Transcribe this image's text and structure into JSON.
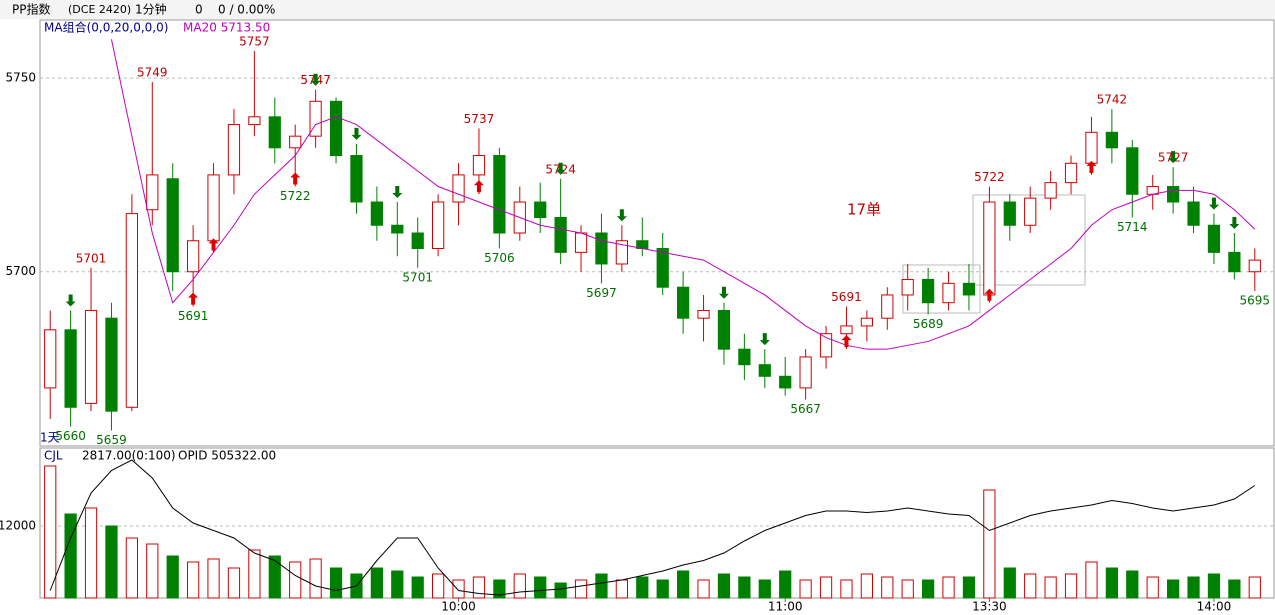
{
  "chart_data": {
    "type": "candlestick",
    "header": {
      "symbol": "PP指数",
      "code": "(DCE 2420)",
      "period": "1分钟",
      "change": "0",
      "change_pct": "0 / 0.00%"
    },
    "ma_legend": "MA组合(0,0,20,0,0,0)",
    "ma_label": "MA20 5713.50",
    "range_label": "1天",
    "annotation": "17单",
    "volume_legend": "CJL",
    "volume_label": "2817.00(0:100)",
    "opid_label": "OPID 505322.00",
    "categories": [
      null,
      null,
      null,
      null,
      null,
      null,
      null,
      null,
      null,
      null,
      null,
      null,
      null,
      null,
      null,
      null,
      null,
      null,
      null,
      null,
      "10:00",
      null,
      null,
      null,
      null,
      null,
      null,
      null,
      null,
      null,
      null,
      null,
      null,
      null,
      null,
      null,
      "11:00",
      null,
      null,
      null,
      null,
      null,
      null,
      null,
      null,
      null,
      "13:30",
      null,
      null,
      null,
      null,
      null,
      null,
      null,
      null,
      null,
      null,
      "14:00",
      null,
      null
    ],
    "candles": [
      [
        5670,
        5690,
        5662,
        5685
      ],
      [
        5685,
        5690,
        5660,
        5665
      ],
      [
        5666,
        5701,
        5664,
        5690
      ],
      [
        5688,
        5692,
        5659,
        5664
      ],
      [
        5665,
        5720,
        5664,
        5715
      ],
      [
        5716,
        5749,
        5712,
        5725
      ],
      [
        5724,
        5728,
        5695,
        5700
      ],
      [
        5700,
        5712,
        5691,
        5708
      ],
      [
        5708,
        5728,
        5705,
        5725
      ],
      [
        5725,
        5742,
        5720,
        5738
      ],
      [
        5738,
        5757,
        5735,
        5740
      ],
      [
        5740,
        5745,
        5728,
        5732
      ],
      [
        5732,
        5738,
        5722,
        5735
      ],
      [
        5735,
        5747,
        5732,
        5744
      ],
      [
        5744,
        5745,
        5728,
        5730
      ],
      [
        5730,
        5733,
        5715,
        5718
      ],
      [
        5718,
        5722,
        5708,
        5712
      ],
      [
        5712,
        5718,
        5704,
        5710
      ],
      [
        5710,
        5714,
        5701,
        5706
      ],
      [
        5706,
        5720,
        5704,
        5718
      ],
      [
        5718,
        5728,
        5712,
        5725
      ],
      [
        5725,
        5737,
        5720,
        5730
      ],
      [
        5730,
        5732,
        5706,
        5710
      ],
      [
        5710,
        5722,
        5708,
        5718
      ],
      [
        5718,
        5723,
        5710,
        5714
      ],
      [
        5714,
        5724,
        5702,
        5705
      ],
      [
        5705,
        5712,
        5700,
        5710
      ],
      [
        5710,
        5715,
        5697,
        5702
      ],
      [
        5702,
        5712,
        5700,
        5708
      ],
      [
        5708,
        5714,
        5704,
        5706
      ],
      [
        5706,
        5710,
        5694,
        5696
      ],
      [
        5696,
        5700,
        5684,
        5688
      ],
      [
        5688,
        5694,
        5682,
        5690
      ],
      [
        5690,
        5692,
        5676,
        5680
      ],
      [
        5680,
        5684,
        5672,
        5676
      ],
      [
        5676,
        5680,
        5670,
        5673
      ],
      [
        5673,
        5678,
        5668,
        5670
      ],
      [
        5670,
        5680,
        5667,
        5678
      ],
      [
        5678,
        5686,
        5675,
        5684
      ],
      [
        5684,
        5691,
        5680,
        5686
      ],
      [
        5686,
        5690,
        5682,
        5688
      ],
      [
        5688,
        5696,
        5685,
        5694
      ],
      [
        5694,
        5702,
        5690,
        5698
      ],
      [
        5698,
        5701,
        5689,
        5692
      ],
      [
        5692,
        5700,
        5690,
        5697
      ],
      [
        5697,
        5702,
        5690,
        5694
      ],
      [
        5694,
        5722,
        5692,
        5718
      ],
      [
        5718,
        5720,
        5708,
        5712
      ],
      [
        5712,
        5722,
        5710,
        5719
      ],
      [
        5719,
        5726,
        5716,
        5723
      ],
      [
        5723,
        5730,
        5720,
        5728
      ],
      [
        5728,
        5740,
        5725,
        5736
      ],
      [
        5736,
        5742,
        5728,
        5732
      ],
      [
        5732,
        5734,
        5714,
        5720
      ],
      [
        5720,
        5725,
        5716,
        5722
      ],
      [
        5722,
        5727,
        5715,
        5718
      ],
      [
        5718,
        5722,
        5710,
        5712
      ],
      [
        5712,
        5715,
        5702,
        5705
      ],
      [
        5705,
        5710,
        5698,
        5700
      ],
      [
        5700,
        5706,
        5695,
        5703
      ]
    ],
    "high_labels": [
      2,
      5,
      10,
      13,
      21,
      25,
      39,
      46,
      52,
      55
    ],
    "low_labels": [
      1,
      3,
      7,
      12,
      18,
      22,
      27,
      37,
      43,
      53,
      59
    ],
    "buy_signals": [
      7,
      8,
      12,
      21,
      39,
      46,
      51
    ],
    "sell_signals": [
      1,
      13,
      15,
      17,
      25,
      28,
      33,
      35,
      55,
      57,
      58
    ],
    "ma20": [
      null,
      null,
      null,
      5760,
      5735,
      5710,
      5692,
      5698,
      5705,
      5712,
      5720,
      5725,
      5730,
      5738,
      5740,
      5738,
      5734,
      5730,
      5726,
      5722,
      5720,
      5718,
      5716,
      5714,
      5712,
      5711,
      5710,
      5708,
      5707,
      5706,
      5705,
      5704,
      5703,
      5700,
      5697,
      5694,
      5690,
      5686,
      5683,
      5681,
      5680,
      5680,
      5681,
      5682,
      5684,
      5686,
      5690,
      5694,
      5698,
      5702,
      5706,
      5712,
      5716,
      5718,
      5720,
      5721,
      5721,
      5720,
      5716,
      5711
    ],
    "up_color": "#d20000",
    "down_color": "#008000",
    "ma_color": "#c000c0",
    "ylim": [
      5655,
      5765
    ],
    "yticks": [
      5700,
      5750
    ],
    "volume": [
      22000,
      14000,
      15000,
      12000,
      10000,
      9000,
      7000,
      6000,
      6500,
      5000,
      8000,
      7000,
      6000,
      6500,
      5000,
      4000,
      5000,
      4500,
      3500,
      4000,
      3000,
      3500,
      3000,
      4000,
      3500,
      2500,
      3000,
      4000,
      3000,
      3500,
      3000,
      4500,
      3000,
      4000,
      3500,
      3000,
      4500,
      3000,
      3500,
      3000,
      4000,
      3500,
      3000,
      3000,
      3500,
      3500,
      18000,
      5000,
      4000,
      3500,
      4000,
      6000,
      5000,
      4500,
      3500,
      3000,
      3500,
      4000,
      3000,
      3500
    ],
    "vol_ylim": [
      0,
      25000
    ],
    "vol_yticks": [
      12000
    ],
    "opid": [
      5,
      40,
      70,
      85,
      92,
      80,
      60,
      50,
      45,
      40,
      30,
      25,
      15,
      8,
      5,
      8,
      25,
      40,
      40,
      20,
      5,
      3,
      2,
      4,
      5,
      6,
      8,
      10,
      12,
      15,
      18,
      22,
      25,
      30,
      38,
      45,
      50,
      55,
      58,
      58,
      57,
      58,
      60,
      58,
      56,
      55,
      45,
      50,
      55,
      58,
      60,
      62,
      65,
      63,
      60,
      58,
      60,
      62,
      66,
      75
    ],
    "y2lim": [
      0,
      100
    ]
  }
}
